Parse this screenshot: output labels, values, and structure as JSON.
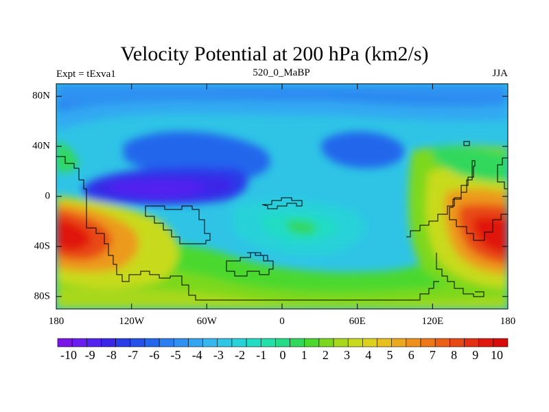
{
  "title": "Velocity Potential at 200 hPa (km2/s)",
  "left_label": "Expt = tExva1",
  "center_label": "520_0_MaBP",
  "right_label": "JJA",
  "lat_ticks": [
    "80N",
    "40N",
    "0",
    "40S",
    "80S"
  ],
  "lon_ticks": [
    "180",
    "120W",
    "60W",
    "0",
    "60E",
    "120E",
    "180"
  ],
  "colorbar": {
    "labels": [
      "-10",
      "-9",
      "-8",
      "-7",
      "-6",
      "-5",
      "-4",
      "-3",
      "-2",
      "-1",
      "0",
      "1",
      "2",
      "3",
      "4",
      "5",
      "6",
      "7",
      "8",
      "9",
      "10"
    ],
    "colors": [
      "#7b16e8",
      "#6a1ef0",
      "#5323f0",
      "#3a26e8",
      "#2a3be8",
      "#2650ea",
      "#2466ec",
      "#2a7ef0",
      "#2f92f2",
      "#33a6f2",
      "#36b8ee",
      "#2fc6e6",
      "#28d2d8",
      "#23dcc4",
      "#22e0aa",
      "#24dc88",
      "#30d85c",
      "#4cd82e",
      "#7cd81e",
      "#a8d81a",
      "#c8da1c",
      "#dcd21e",
      "#e8c01e",
      "#eca81e",
      "#ee901a",
      "#ee7818",
      "#ec6016",
      "#e84814",
      "#e43012",
      "#e01810",
      "#d80a0a"
    ]
  }
}
